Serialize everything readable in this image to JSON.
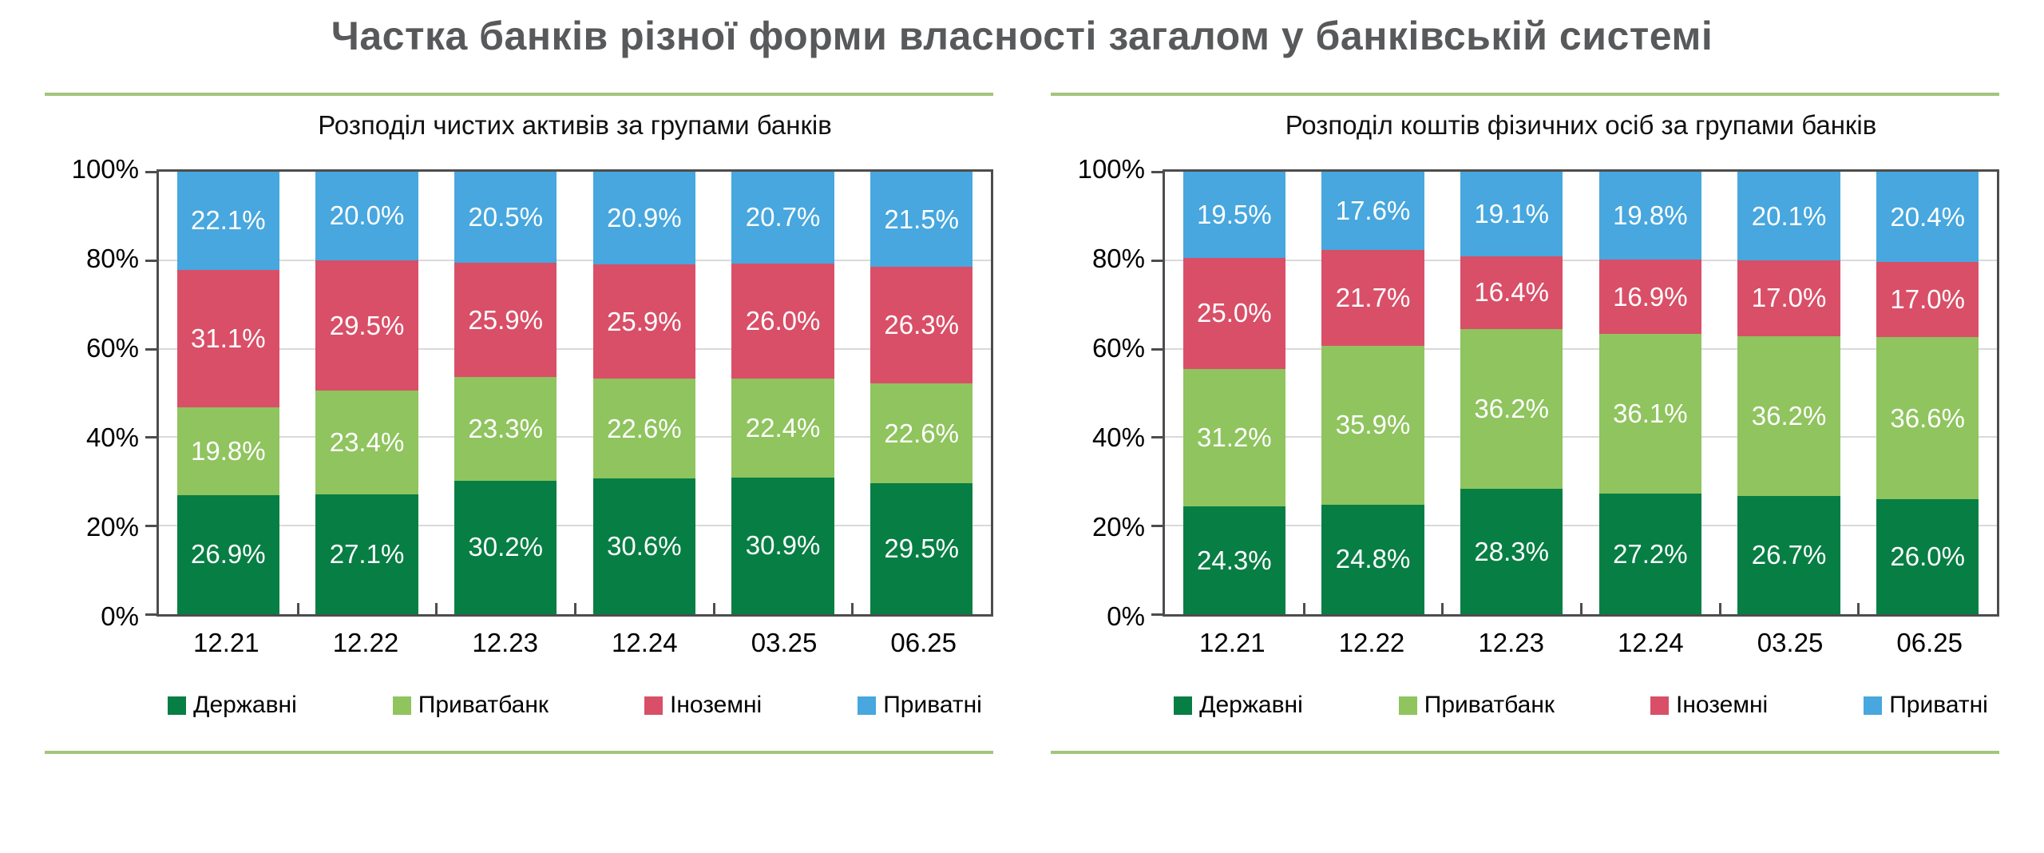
{
  "page": {
    "title": "Частка банків різної форми власності загалом у банківській системі"
  },
  "colors": {
    "title_text": "#58595B",
    "rule_green": "#A3C57C",
    "plot_border": "#4D4D4D",
    "gridline": "#D9D9D9",
    "data_label_text": "#FFFFFF",
    "series_derzhavni": "#077E44",
    "series_privatbank": "#8FC45E",
    "series_inozemni": "#D94F68",
    "series_privatni": "#47A7DE"
  },
  "chart_data": [
    {
      "type": "bar",
      "stacked": true,
      "title": "Розподіл чистих активів за групами банків",
      "categories": [
        "12.21",
        "12.22",
        "12.23",
        "12.24",
        "03.25",
        "06.25"
      ],
      "series": [
        {
          "name": "Державні",
          "color": "#077E44",
          "values": [
            26.9,
            27.1,
            30.2,
            30.6,
            30.9,
            29.5
          ]
        },
        {
          "name": "Приватбанк",
          "color": "#8FC45E",
          "values": [
            19.8,
            23.4,
            23.3,
            22.6,
            22.4,
            22.6
          ]
        },
        {
          "name": "Іноземні",
          "color": "#D94F68",
          "values": [
            31.1,
            29.5,
            25.9,
            25.9,
            26.0,
            26.3
          ]
        },
        {
          "name": "Приватні",
          "color": "#47A7DE",
          "values": [
            22.1,
            20.0,
            20.5,
            20.9,
            20.7,
            21.5
          ]
        }
      ],
      "xlabel": "",
      "ylabel": "",
      "ylim": [
        0,
        100
      ],
      "yticks": [
        "0%",
        "20%",
        "40%",
        "60%",
        "80%",
        "100%"
      ],
      "grid": true,
      "legend_position": "bottom",
      "label_format": "one_decimal_percent"
    },
    {
      "type": "bar",
      "stacked": true,
      "title": "Розподіл коштів фізичних осіб за групами банків",
      "categories": [
        "12.21",
        "12.22",
        "12.23",
        "12.24",
        "03.25",
        "06.25"
      ],
      "series": [
        {
          "name": "Державні",
          "color": "#077E44",
          "values": [
            24.3,
            24.8,
            28.3,
            27.2,
            26.7,
            26.0
          ]
        },
        {
          "name": "Приватбанк",
          "color": "#8FC45E",
          "values": [
            31.2,
            35.9,
            36.2,
            36.1,
            36.2,
            36.6
          ]
        },
        {
          "name": "Іноземні",
          "color": "#D94F68",
          "values": [
            25.0,
            21.7,
            16.4,
            16.9,
            17.0,
            17.0
          ]
        },
        {
          "name": "Приватні",
          "color": "#47A7DE",
          "values": [
            19.5,
            17.6,
            19.1,
            19.8,
            20.1,
            20.4
          ]
        }
      ],
      "xlabel": "",
      "ylabel": "",
      "ylim": [
        0,
        100
      ],
      "yticks": [
        "0%",
        "20%",
        "40%",
        "60%",
        "80%",
        "100%"
      ],
      "grid": true,
      "legend_position": "bottom",
      "label_format": "one_decimal_percent"
    }
  ]
}
